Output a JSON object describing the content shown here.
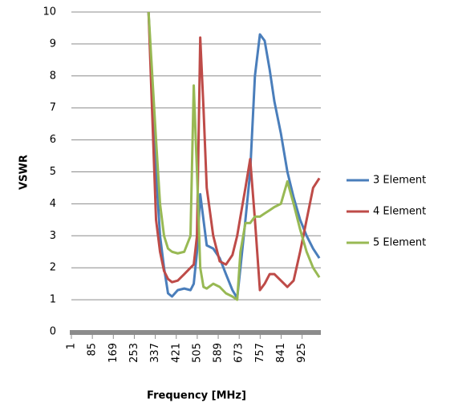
{
  "chart_data": {
    "type": "line",
    "x_label": "Frequency [MHz]",
    "y_label": "VSWR",
    "x": [
      310,
      340,
      356,
      372,
      388,
      404,
      427,
      453,
      478,
      491,
      504,
      517,
      530,
      543,
      569,
      595,
      620,
      646,
      665,
      678,
      698,
      717,
      736,
      756,
      775,
      795,
      814,
      840,
      866,
      891,
      917,
      943,
      969,
      994
    ],
    "series": [
      {
        "name": "3 Element",
        "color": "#4a7ebb",
        "values": [
          10,
          5,
          3,
          2,
          1.2,
          1.1,
          1.3,
          1.35,
          1.3,
          1.5,
          2.5,
          4.3,
          3.5,
          2.7,
          2.6,
          2.3,
          1.8,
          1.3,
          1.05,
          2,
          3.5,
          5,
          8,
          9.3,
          9.1,
          8.2,
          7.2,
          6.2,
          5,
          4.2,
          3.5,
          3,
          2.6,
          2.3
        ]
      },
      {
        "name": "4 Element",
        "color": "#be4b48",
        "values": [
          10,
          3.5,
          2.5,
          1.9,
          1.65,
          1.55,
          1.6,
          1.8,
          2,
          2.1,
          3,
          9.2,
          7,
          4.5,
          3,
          2.2,
          2.1,
          2.4,
          3,
          3.6,
          4.5,
          5.4,
          3.5,
          1.3,
          1.5,
          1.8,
          1.8,
          1.6,
          1.4,
          1.6,
          2.5,
          3.5,
          4.5,
          4.8
        ]
      },
      {
        "name": "5 Element",
        "color": "#98b954",
        "values": [
          10,
          6,
          4,
          3,
          2.6,
          2.5,
          2.45,
          2.5,
          3,
          7.7,
          5,
          2,
          1.4,
          1.35,
          1.5,
          1.4,
          1.2,
          1.1,
          1,
          2.5,
          3.4,
          3.4,
          3.6,
          3.6,
          3.7,
          3.8,
          3.9,
          4,
          4.7,
          4,
          3.2,
          2.5,
          2,
          1.7
        ]
      }
    ],
    "xlim": [
      1,
      1000
    ],
    "xticks": [
      1,
      85,
      169,
      253,
      337,
      421,
      505,
      589,
      673,
      757,
      841,
      925
    ],
    "ylim": [
      0,
      10
    ],
    "yticks": [
      0,
      1,
      2,
      3,
      4,
      5,
      6,
      7,
      8,
      9,
      10
    ],
    "grid": true,
    "legend": "right"
  }
}
